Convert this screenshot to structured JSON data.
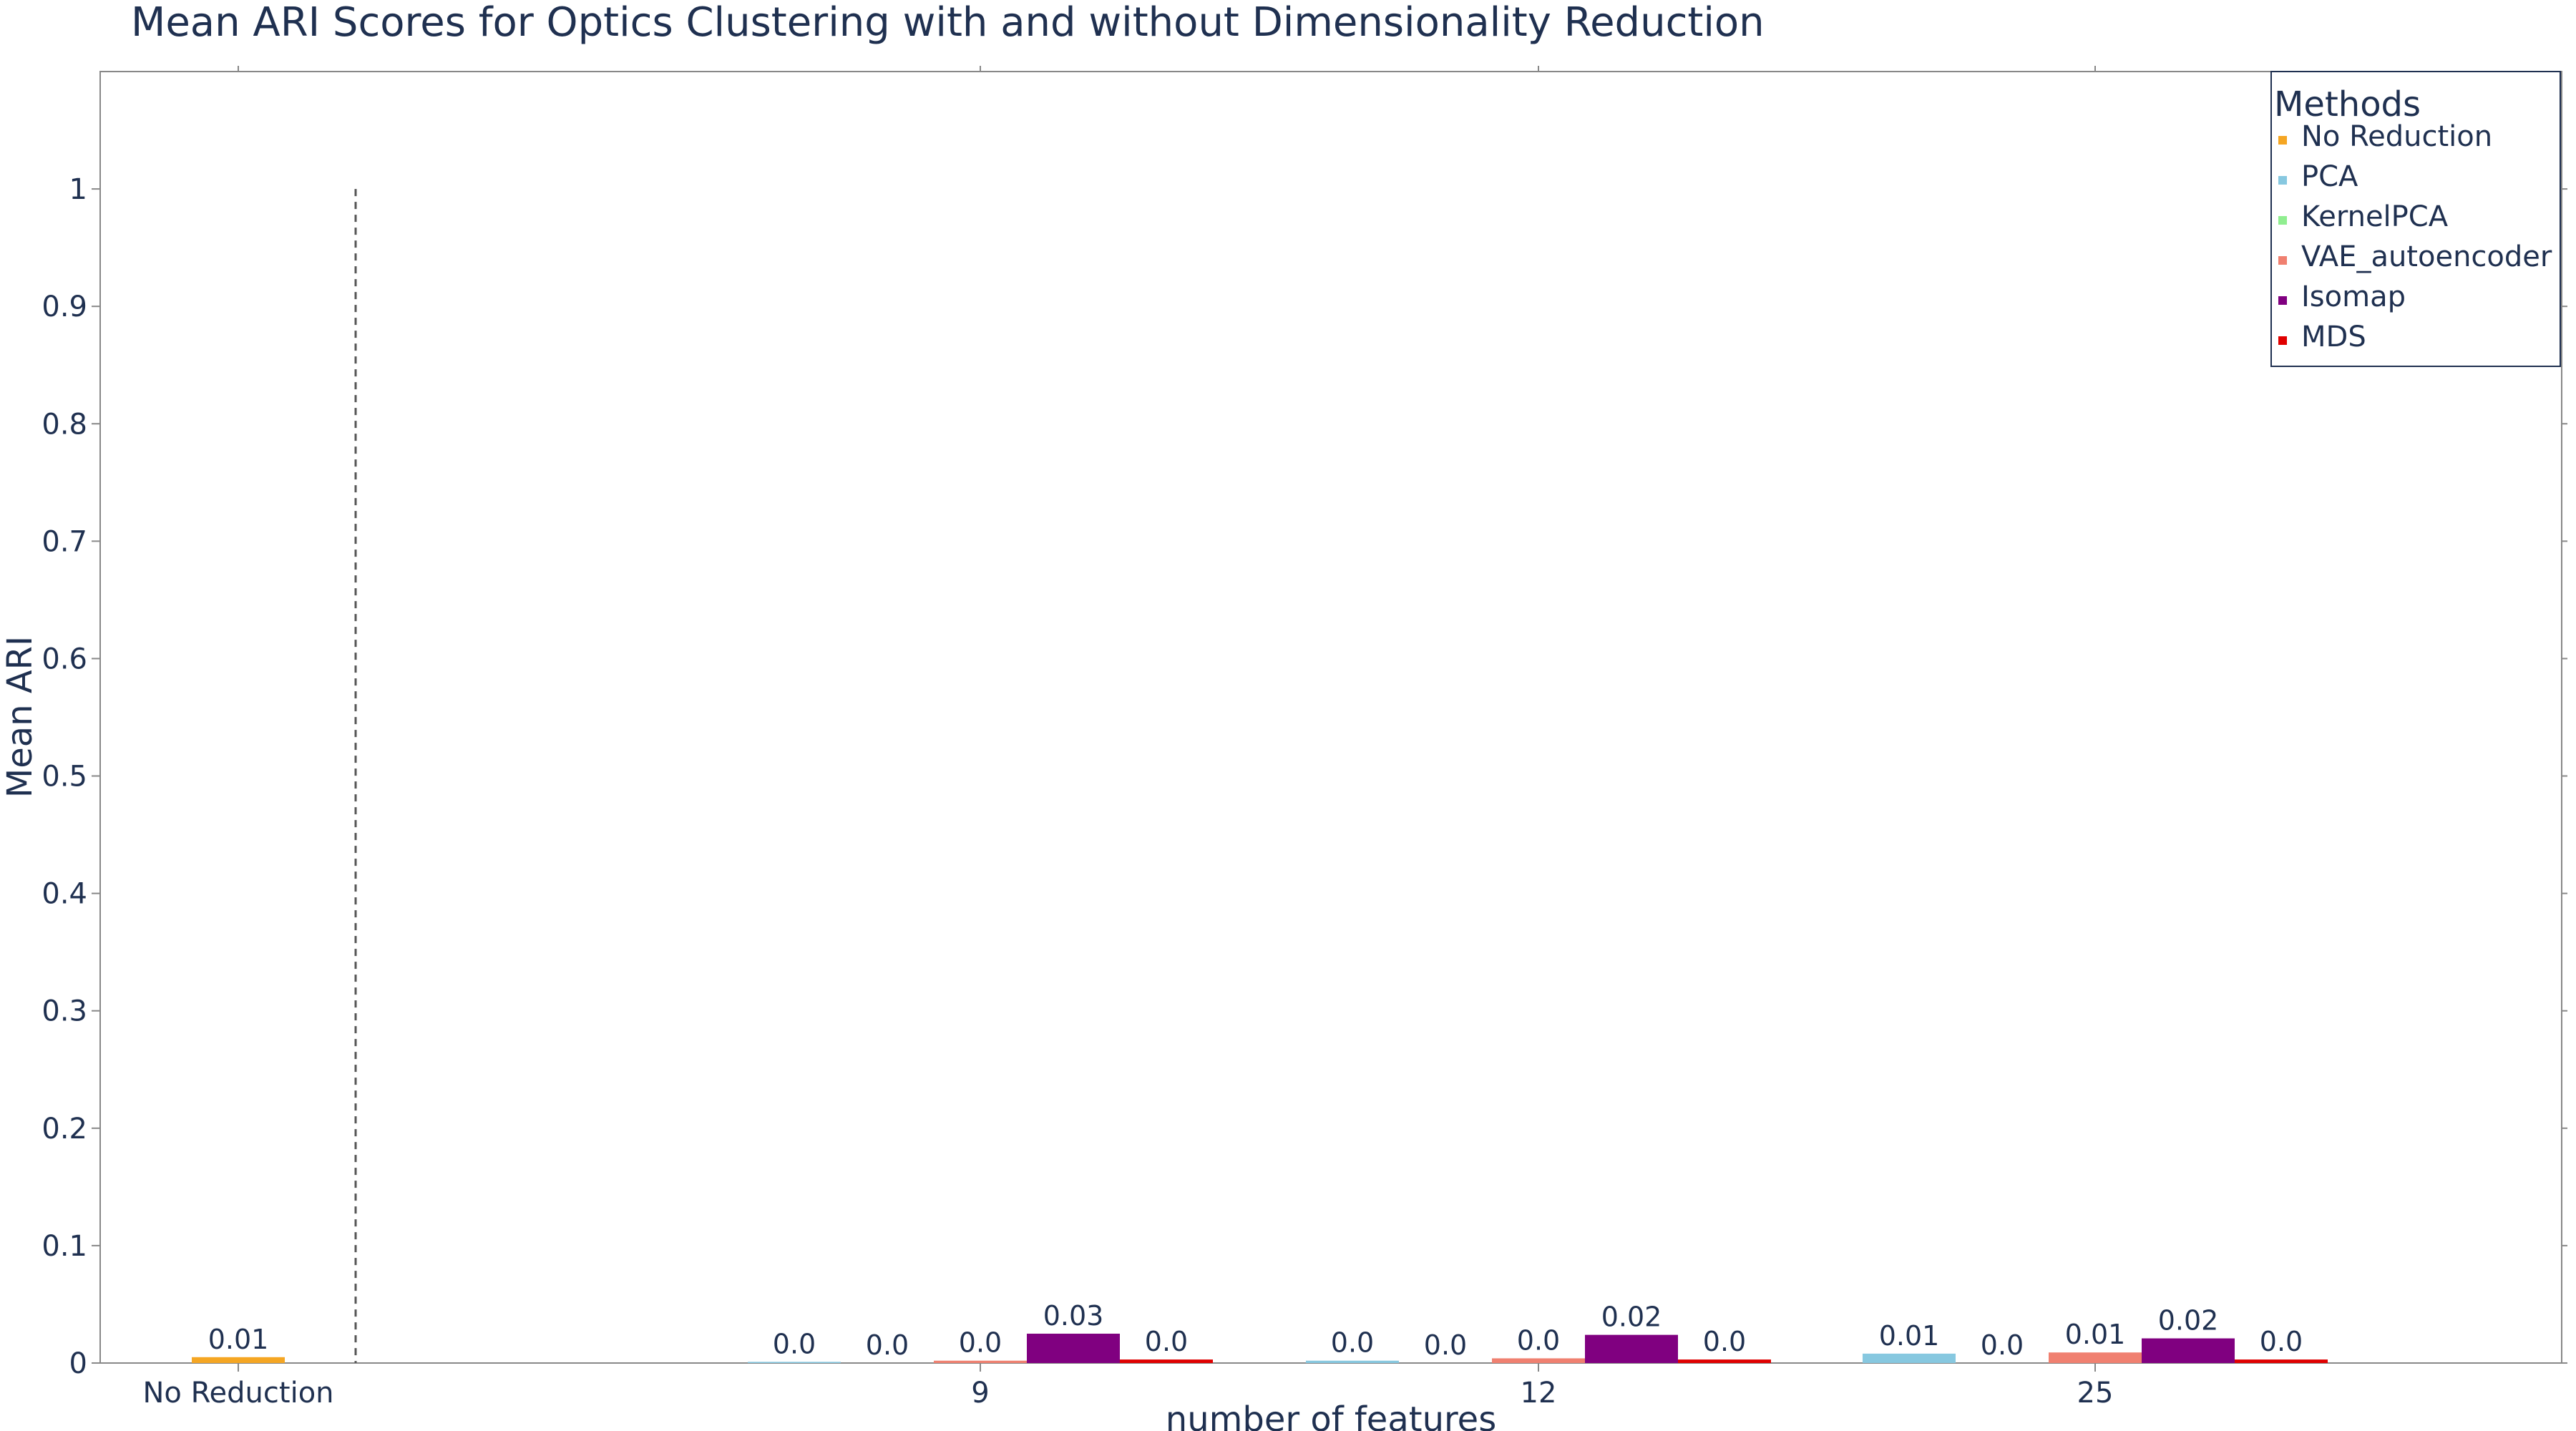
{
  "chart_data": {
    "type": "bar",
    "title": "Mean ARI Scores for Optics Clustering with and without Dimensionality Reduction",
    "xlabel": "number of features",
    "ylabel": "Mean ARI",
    "ylim": [
      0,
      1.1
    ],
    "yticks": [
      0,
      0.1,
      0.2,
      0.3,
      0.4,
      0.5,
      0.6,
      0.7,
      0.8,
      0.9,
      1
    ],
    "ytick_labels": [
      "0",
      "0.1",
      "0.2",
      "0.3",
      "0.4",
      "0.5",
      "0.6",
      "0.7",
      "0.8",
      "0.9",
      "1"
    ],
    "grid": false,
    "legend": {
      "title": "Methods",
      "position": "top-right"
    },
    "baseline": {
      "category": "No Reduction",
      "method": "No Reduction",
      "value": 0.005,
      "label": "0.01",
      "color": "#f5a623"
    },
    "separator": {
      "style": "dashed",
      "ymax": 1
    },
    "categories": [
      "9",
      "12",
      "25"
    ],
    "series": [
      {
        "name": "PCA",
        "color": "#87c8e0",
        "values": [
          0.001,
          0.002,
          0.008
        ],
        "labels": [
          "0.0",
          "0.0",
          "0.01"
        ]
      },
      {
        "name": "KernelPCA",
        "color": "#90ee90",
        "values": [
          0.0,
          0.0,
          0.0
        ],
        "labels": [
          "0.0",
          "0.0",
          "0.0"
        ]
      },
      {
        "name": "VAE_autoencoder",
        "color": "#f08070",
        "values": [
          0.002,
          0.004,
          0.009
        ],
        "labels": [
          "0.0",
          "0.0",
          "0.01"
        ]
      },
      {
        "name": "Isomap",
        "color": "#800080",
        "values": [
          0.025,
          0.024,
          0.021
        ],
        "labels": [
          "0.03",
          "0.02",
          "0.02"
        ]
      },
      {
        "name": "MDS",
        "color": "#e00000",
        "values": [
          0.003,
          0.003,
          0.003
        ],
        "labels": [
          "0.0",
          "0.0",
          "0.0"
        ]
      }
    ]
  }
}
